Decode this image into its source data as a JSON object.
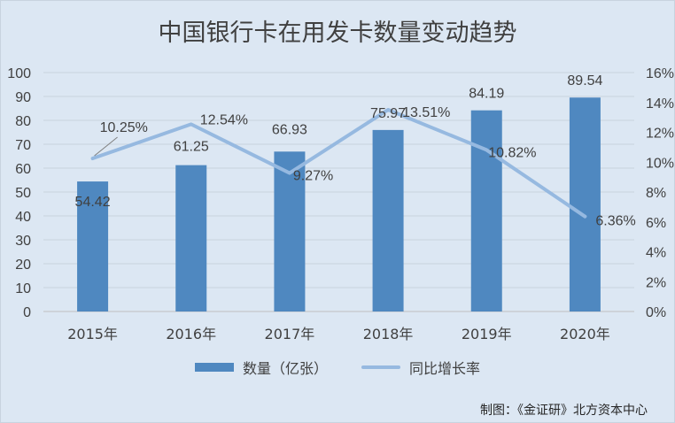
{
  "chart_data": {
    "type": "bar",
    "title": "中国银行卡在用发卡数量变动趋势",
    "categories": [
      "2015年",
      "2016年",
      "2017年",
      "2018年",
      "2019年",
      "2020年"
    ],
    "series": [
      {
        "name": "数量（亿张）",
        "type": "bar",
        "axis": "left",
        "values": [
          54.42,
          61.25,
          66.93,
          75.97,
          84.19,
          89.54
        ],
        "labels": [
          "54.42",
          "61.25",
          "66.93",
          "75.97",
          "84.19",
          "89.54"
        ],
        "color": "#4f88c0"
      },
      {
        "name": "同比增长率",
        "type": "line",
        "axis": "right",
        "values": [
          10.25,
          12.54,
          9.27,
          13.51,
          10.82,
          6.36
        ],
        "labels": [
          "10.25%",
          "12.54%",
          "9.27%",
          "13.51%",
          "10.82%",
          "6.36%"
        ],
        "color": "#96b9e0"
      }
    ],
    "y_left": {
      "ylim": [
        0,
        100
      ],
      "ticks": [
        "0",
        "10",
        "20",
        "30",
        "40",
        "50",
        "60",
        "70",
        "80",
        "90",
        "100"
      ]
    },
    "y_right": {
      "ylim": [
        0,
        16
      ],
      "ticks": [
        "0%",
        "2%",
        "4%",
        "6%",
        "8%",
        "10%",
        "12%",
        "14%",
        "16%"
      ]
    },
    "grid": true,
    "legend": "bottom"
  },
  "source": "制图：《金证研》北方资本中心"
}
